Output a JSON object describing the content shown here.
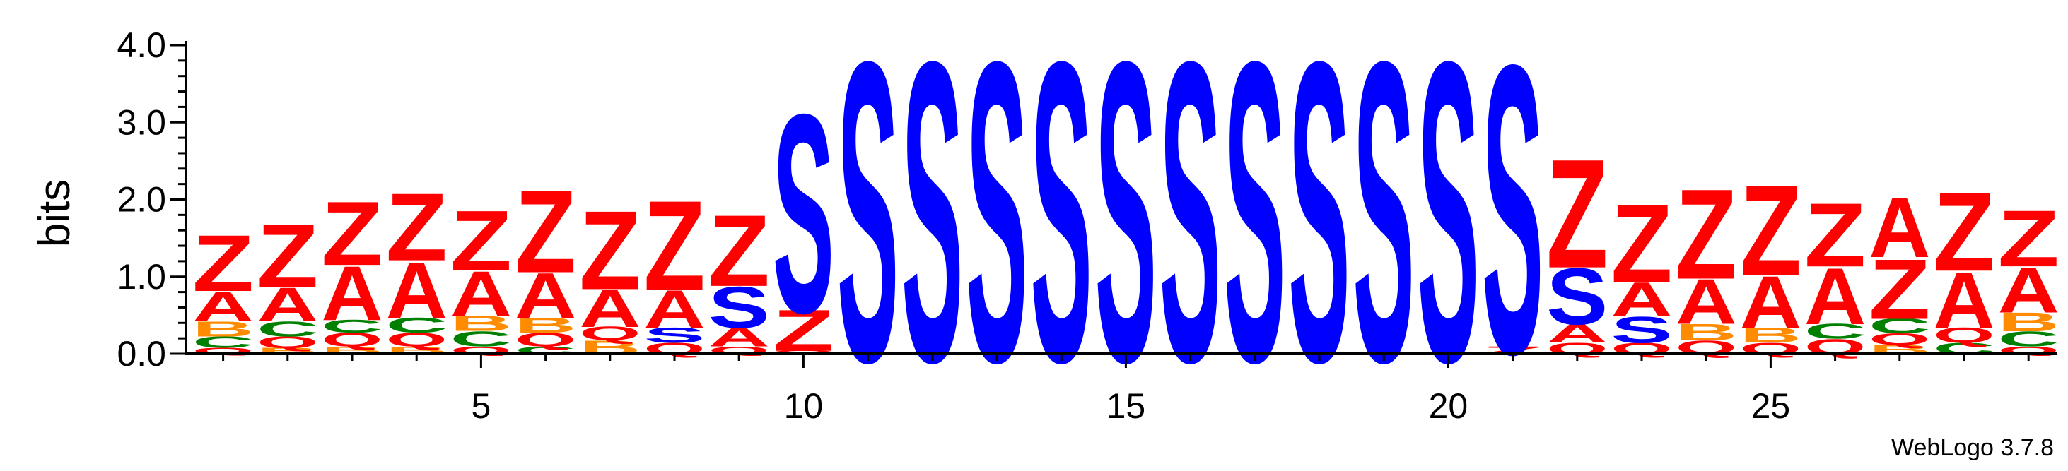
{
  "chart_data": {
    "type": "sequence-logo",
    "ylabel": "bits",
    "ylim": [
      0,
      4.0
    ],
    "yticks": [
      "0.0",
      "1.0",
      "2.0",
      "3.0",
      "4.0"
    ],
    "xticks": [
      5,
      10,
      15,
      20,
      25
    ],
    "credit": "WebLogo 3.7.8",
    "colors": {
      "Z": "#ff0000",
      "Q": "#ff0000",
      "A": "#ff0000",
      "S": "#0000ff",
      "C": "#008000",
      "B": "#ff8c00"
    },
    "positions": [
      {
        "pos": 1,
        "stack": [
          [
            "Q",
            0.08
          ],
          [
            "C",
            0.15
          ],
          [
            "B",
            0.2
          ],
          [
            "A",
            0.4
          ],
          [
            "Z",
            0.75
          ]
        ]
      },
      {
        "pos": 2,
        "stack": [
          [
            "B",
            0.08
          ],
          [
            "Q",
            0.15
          ],
          [
            "C",
            0.2
          ],
          [
            "A",
            0.45
          ],
          [
            "Z",
            0.85
          ]
        ]
      },
      {
        "pos": 3,
        "stack": [
          [
            "B",
            0.1
          ],
          [
            "Q",
            0.18
          ],
          [
            "C",
            0.17
          ],
          [
            "A",
            0.72
          ],
          [
            "Z",
            0.85
          ]
        ]
      },
      {
        "pos": 4,
        "stack": [
          [
            "B",
            0.1
          ],
          [
            "Q",
            0.18
          ],
          [
            "C",
            0.2
          ],
          [
            "A",
            0.75
          ],
          [
            "Z",
            0.9
          ]
        ]
      },
      {
        "pos": 5,
        "stack": [
          [
            "Q",
            0.1
          ],
          [
            "C",
            0.2
          ],
          [
            "B",
            0.2
          ],
          [
            "A",
            0.6
          ],
          [
            "Z",
            0.8
          ]
        ]
      },
      {
        "pos": 6,
        "stack": [
          [
            "C",
            0.1
          ],
          [
            "Q",
            0.18
          ],
          [
            "B",
            0.2
          ],
          [
            "A",
            0.6
          ],
          [
            "Z",
            1.1
          ]
        ]
      },
      {
        "pos": 7,
        "stack": [
          [
            "B",
            0.18
          ],
          [
            "Q",
            0.18
          ],
          [
            "A",
            0.5
          ],
          [
            "Z",
            1.05
          ]
        ]
      },
      {
        "pos": 8,
        "stack": [
          [
            "Q",
            0.15
          ],
          [
            "S",
            0.2
          ],
          [
            "A",
            0.5
          ],
          [
            "Z",
            1.2
          ]
        ]
      },
      {
        "pos": 9,
        "stack": [
          [
            "Q",
            0.1
          ],
          [
            "A",
            0.25
          ],
          [
            "S",
            0.55
          ],
          [
            "Z",
            0.95
          ]
        ]
      },
      {
        "pos": 10,
        "stack": [
          [
            "Q",
            0.05
          ],
          [
            "Z",
            0.55
          ],
          [
            "S",
            2.65
          ]
        ]
      },
      {
        "pos": 11,
        "stack": [
          [
            "S",
            4.0
          ]
        ]
      },
      {
        "pos": 12,
        "stack": [
          [
            "S",
            4.0
          ]
        ]
      },
      {
        "pos": 13,
        "stack": [
          [
            "S",
            4.0
          ]
        ]
      },
      {
        "pos": 14,
        "stack": [
          [
            "S",
            4.0
          ]
        ]
      },
      {
        "pos": 15,
        "stack": [
          [
            "S",
            4.0
          ]
        ]
      },
      {
        "pos": 16,
        "stack": [
          [
            "S",
            4.0
          ]
        ]
      },
      {
        "pos": 17,
        "stack": [
          [
            "S",
            4.0
          ]
        ]
      },
      {
        "pos": 18,
        "stack": [
          [
            "S",
            4.0
          ]
        ]
      },
      {
        "pos": 19,
        "stack": [
          [
            "S",
            4.0
          ]
        ]
      },
      {
        "pos": 20,
        "stack": [
          [
            "S",
            4.0
          ]
        ]
      },
      {
        "pos": 21,
        "stack": [
          [
            "Z",
            0.1
          ],
          [
            "S",
            3.85
          ]
        ]
      },
      {
        "pos": 22,
        "stack": [
          [
            "Q",
            0.15
          ],
          [
            "A",
            0.25
          ],
          [
            "S",
            0.75
          ],
          [
            "Z",
            1.45
          ]
        ]
      },
      {
        "pos": 23,
        "stack": [
          [
            "Q",
            0.15
          ],
          [
            "S",
            0.35
          ],
          [
            "A",
            0.45
          ],
          [
            "Z",
            1.05
          ]
        ]
      },
      {
        "pos": 24,
        "stack": [
          [
            "Q",
            0.18
          ],
          [
            "B",
            0.22
          ],
          [
            "A",
            0.6
          ],
          [
            "Z",
            1.2
          ]
        ]
      },
      {
        "pos": 25,
        "stack": [
          [
            "Q",
            0.15
          ],
          [
            "B",
            0.2
          ],
          [
            "A",
            0.7
          ],
          [
            "Z",
            1.2
          ]
        ]
      },
      {
        "pos": 26,
        "stack": [
          [
            "Q",
            0.2
          ],
          [
            "C",
            0.2
          ],
          [
            "A",
            0.75
          ],
          [
            "Z",
            0.85
          ]
        ]
      },
      {
        "pos": 27,
        "stack": [
          [
            "B",
            0.12
          ],
          [
            "Q",
            0.15
          ],
          [
            "C",
            0.2
          ],
          [
            "Z",
            0.8
          ],
          [
            "A",
            0.8
          ]
        ]
      },
      {
        "pos": 28,
        "stack": [
          [
            "C",
            0.15
          ],
          [
            "Q",
            0.2
          ],
          [
            "A",
            0.75
          ],
          [
            "Z",
            1.05
          ]
        ]
      },
      {
        "pos": 29,
        "stack": [
          [
            "Q",
            0.1
          ],
          [
            "C",
            0.2
          ],
          [
            "B",
            0.25
          ],
          [
            "A",
            0.6
          ],
          [
            "Z",
            0.75
          ]
        ]
      }
    ]
  }
}
